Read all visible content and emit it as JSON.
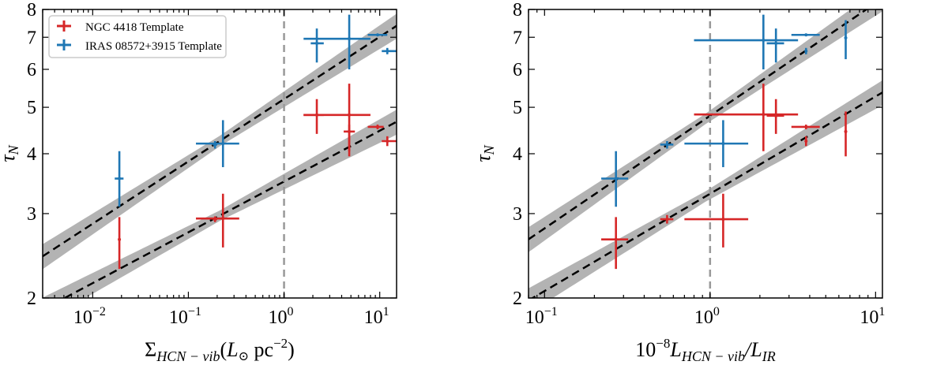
{
  "chart_data": [
    {
      "type": "scatter",
      "panel": "left",
      "xscale": "log",
      "yscale": "log",
      "xlim": [
        0.003,
        15
      ],
      "ylim": [
        2,
        8
      ],
      "xlabel": {
        "main": "Σ",
        "sub": "HCN − vib",
        "open": "(",
        "l": "L",
        "sun": "⊙",
        "unit": " pc",
        "sup": "−2",
        "close": ")"
      },
      "ylabel": {
        "main": "τ",
        "sub": "N"
      },
      "xticks": [
        {
          "value": 0.01,
          "base": "10",
          "exp": "−2"
        },
        {
          "value": 0.1,
          "base": "10",
          "exp": "−1"
        },
        {
          "value": 1,
          "base": "10",
          "exp": "0"
        },
        {
          "value": 10,
          "base": "10",
          "exp": "1"
        }
      ],
      "yticks": [
        {
          "value": 2,
          "label": "2"
        },
        {
          "value": 3,
          "label": "3"
        },
        {
          "value": 4,
          "label": "4"
        },
        {
          "value": 5,
          "label": "5"
        },
        {
          "value": 6,
          "label": "6"
        },
        {
          "value": 7,
          "label": "7"
        },
        {
          "value": 8,
          "label": "8"
        }
      ],
      "vline": 1,
      "legend": {
        "placement": "top-left",
        "entries": [
          {
            "label": "NGC 4418 Template",
            "color": "#d62728"
          },
          {
            "label": "IRAS 08572+3915 Template",
            "color": "#1f77b4"
          }
        ]
      },
      "fits": [
        {
          "series": "IRAS 08572+3915 Template",
          "form": "A*x^b",
          "A": 5.2,
          "b": 0.13
        },
        {
          "series": "NGC 4418 Template",
          "form": "A*x^b",
          "A": 3.5,
          "b": 0.106
        }
      ],
      "series": [
        {
          "name": "NGC 4418 Template",
          "color": "#d62728",
          "points": [
            {
              "x": 0.019,
              "y": 2.65,
              "xerr": [
                0.019,
                0.019
              ],
              "yerr": [
                2.3,
                2.95
              ]
            },
            {
              "x": 0.19,
              "y": 2.92,
              "xerr": [
                0.18,
                0.2
              ],
              "yerr": [
                2.88,
                2.96
              ]
            },
            {
              "x": 0.23,
              "y": 2.93,
              "xerr": [
                0.12,
                0.34
              ],
              "yerr": [
                2.55,
                3.3
              ]
            },
            {
              "x": 2.2,
              "y": 4.82,
              "xerr": [
                1.6,
                2.6
              ],
              "yerr": [
                4.4,
                5.2
              ]
            },
            {
              "x": 4.8,
              "y": 4.82,
              "xerr": [
                1.6,
                8
              ],
              "yerr": [
                4.05,
                5.6
              ]
            },
            {
              "x": 4.8,
              "y": 4.45,
              "xerr": [
                4.2,
                5.5
              ],
              "yerr": [
                3.95,
                4.6
              ]
            },
            {
              "x": 9.5,
              "y": 4.55,
              "xerr": [
                7.5,
                11
              ],
              "yerr": [
                4.5,
                4.6
              ]
            },
            {
              "x": 12,
              "y": 4.25,
              "xerr": [
                10.5,
                15
              ],
              "yerr": [
                4.15,
                4.35
              ]
            }
          ]
        },
        {
          "name": "IRAS 08572+3915 Template",
          "color": "#1f77b4",
          "points": [
            {
              "x": 0.019,
              "y": 3.55,
              "xerr": [
                0.017,
                0.021
              ],
              "yerr": [
                3.1,
                4.05
              ]
            },
            {
              "x": 0.19,
              "y": 4.18,
              "xerr": [
                0.18,
                0.2
              ],
              "yerr": [
                4.1,
                4.25
              ]
            },
            {
              "x": 0.23,
              "y": 4.2,
              "xerr": [
                0.12,
                0.34
              ],
              "yerr": [
                3.75,
                4.7
              ]
            },
            {
              "x": 2.2,
              "y": 6.8,
              "xerr": [
                1.9,
                2.6
              ],
              "yerr": [
                6.2,
                7.3
              ]
            },
            {
              "x": 4.8,
              "y": 6.95,
              "xerr": [
                1.6,
                8
              ],
              "yerr": [
                6.0,
                7.8
              ]
            },
            {
              "x": 9.5,
              "y": 7.08,
              "xerr": [
                7.5,
                12
              ],
              "yerr": [
                7.05,
                7.11
              ]
            },
            {
              "x": 12,
              "y": 6.55,
              "xerr": [
                10.5,
                15
              ],
              "yerr": [
                6.45,
                6.65
              ]
            }
          ]
        }
      ]
    },
    {
      "type": "scatter",
      "panel": "right",
      "xscale": "log",
      "yscale": "log",
      "xlim": [
        0.08,
        11
      ],
      "ylim": [
        2,
        8
      ],
      "xlabel": {
        "pre": "10",
        "presup": "−8",
        "l": "L",
        "sub": "HCN − vib",
        "slash": "/",
        "l2": "L",
        "sub2": "IR"
      },
      "ylabel": {
        "main": "τ",
        "sub": "N"
      },
      "xticks": [
        {
          "value": 0.1,
          "base": "10",
          "exp": "−1"
        },
        {
          "value": 1,
          "base": "10",
          "exp": "0"
        },
        {
          "value": 10,
          "base": "10",
          "exp": "1"
        }
      ],
      "yticks": [
        {
          "value": 2,
          "label": "2"
        },
        {
          "value": 3,
          "label": "3"
        },
        {
          "value": 4,
          "label": "4"
        },
        {
          "value": 5,
          "label": "5"
        },
        {
          "value": 6,
          "label": "6"
        },
        {
          "value": 7,
          "label": "7"
        },
        {
          "value": 8,
          "label": "8"
        }
      ],
      "vline": 1,
      "fits": [
        {
          "series": "IRAS 08572+3915 Template",
          "form": "A*x^b",
          "A": 4.8,
          "b": 0.235
        },
        {
          "series": "NGC 4418 Template",
          "form": "A*x^b",
          "A": 3.3,
          "b": 0.203
        }
      ],
      "series": [
        {
          "name": "NGC 4418 Template",
          "color": "#d62728",
          "points": [
            {
              "x": 0.27,
              "y": 2.65,
              "xerr": [
                0.22,
                0.32
              ],
              "yerr": [
                2.3,
                2.95
              ]
            },
            {
              "x": 0.55,
              "y": 2.92,
              "xerr": [
                0.5,
                0.6
              ],
              "yerr": [
                2.86,
                2.98
              ]
            },
            {
              "x": 1.2,
              "y": 2.92,
              "xerr": [
                0.7,
                1.7
              ],
              "yerr": [
                2.55,
                3.3
              ]
            },
            {
              "x": 2.1,
              "y": 4.83,
              "xerr": [
                0.8,
                3.4
              ],
              "yerr": [
                4.05,
                5.6
              ]
            },
            {
              "x": 2.5,
              "y": 4.8,
              "xerr": [
                2.2,
                2.8
              ],
              "yerr": [
                4.4,
                5.2
              ]
            },
            {
              "x": 3.8,
              "y": 4.55,
              "xerr": [
                3.1,
                4.6
              ],
              "yerr": [
                4.5,
                4.6
              ]
            },
            {
              "x": 3.8,
              "y": 4.25,
              "xerr": [
                3.75,
                3.85
              ],
              "yerr": [
                4.15,
                4.35
              ]
            },
            {
              "x": 6.6,
              "y": 4.45,
              "xerr": [
                6.6,
                6.6
              ],
              "yerr": [
                3.95,
                4.9
              ]
            }
          ]
        },
        {
          "name": "IRAS 08572+3915 Template",
          "color": "#1f77b4",
          "points": [
            {
              "x": 0.27,
              "y": 3.55,
              "xerr": [
                0.22,
                0.32
              ],
              "yerr": [
                3.1,
                4.05
              ]
            },
            {
              "x": 0.55,
              "y": 4.18,
              "xerr": [
                0.5,
                0.6
              ],
              "yerr": [
                4.1,
                4.25
              ]
            },
            {
              "x": 1.2,
              "y": 4.2,
              "xerr": [
                0.7,
                1.7
              ],
              "yerr": [
                3.75,
                4.7
              ]
            },
            {
              "x": 2.1,
              "y": 6.9,
              "xerr": [
                0.8,
                3.4
              ],
              "yerr": [
                6.0,
                7.8
              ]
            },
            {
              "x": 2.5,
              "y": 6.8,
              "xerr": [
                2.2,
                2.8
              ],
              "yerr": [
                6.2,
                7.3
              ]
            },
            {
              "x": 3.8,
              "y": 7.08,
              "xerr": [
                3.1,
                4.6
              ],
              "yerr": [
                7.05,
                7.11
              ]
            },
            {
              "x": 3.8,
              "y": 6.55,
              "xerr": [
                3.75,
                3.85
              ],
              "yerr": [
                6.45,
                6.65
              ]
            },
            {
              "x": 6.6,
              "y": 6.98,
              "xerr": [
                6.6,
                6.6
              ],
              "yerr": [
                6.3,
                7.6
              ]
            }
          ]
        }
      ]
    }
  ]
}
